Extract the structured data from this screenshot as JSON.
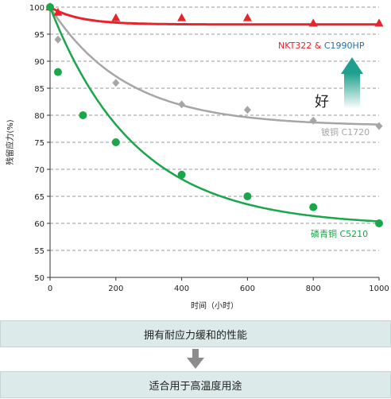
{
  "chart_data": {
    "type": "scatter",
    "xlabel": "时间（小时）",
    "ylabel": "残留应力(%)",
    "xlim": [
      0,
      1000
    ],
    "ylim": [
      50,
      100
    ],
    "x_ticks": [
      "0",
      "200",
      "400",
      "600",
      "800",
      "1000"
    ],
    "y_ticks": [
      "50",
      "55",
      "60",
      "65",
      "70",
      "75",
      "80",
      "85",
      "90",
      "95",
      "100"
    ],
    "grid": "horizontal dashed",
    "series": [
      {
        "label_parts": [
          "NKT322 & ",
          "C1990HP"
        ],
        "label_colors": [
          "#e8242a",
          "#1f6fb5"
        ],
        "color": "#e8242a",
        "marker": "triangle",
        "x": [
          0,
          24,
          200,
          400,
          600,
          800,
          1000
        ],
        "y": [
          100,
          99,
          98,
          98,
          98,
          97,
          97
        ]
      },
      {
        "name": "铍铜 C1720",
        "color": "#a6a6a6",
        "marker": "diamond",
        "x": [
          0,
          24,
          200,
          400,
          600,
          800,
          1000
        ],
        "y": [
          100,
          94,
          86,
          82,
          81,
          79,
          78
        ]
      },
      {
        "name": "磷青铜 C5210",
        "color": "#1aa64a",
        "marker": "circle",
        "x": [
          0,
          24,
          100,
          200,
          400,
          600,
          800,
          1000
        ],
        "y": [
          100,
          88,
          80,
          75,
          69,
          65,
          63,
          60
        ]
      }
    ],
    "annotation": {
      "text": "好"
    }
  },
  "footer": {
    "top_label": "拥有耐应力缓和的性能",
    "bottom_label": "适合用于高温度用途"
  }
}
